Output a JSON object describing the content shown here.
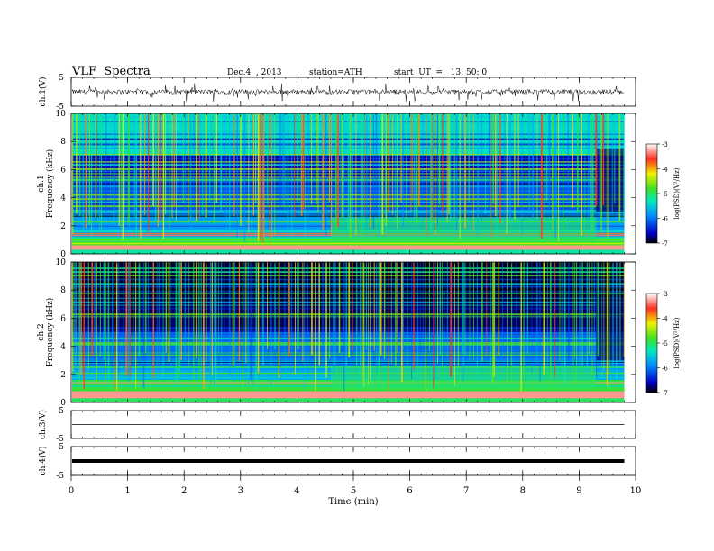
{
  "header": {
    "title": "VLF  Spectra",
    "date": "Dec.4  , 2013",
    "station": "station=ATH",
    "start_ut": "start  UT  =   13: 50: 0"
  },
  "chart_data": [
    {
      "type": "line",
      "panel": "ch1-waveform",
      "ylabel": "ch.1(V)",
      "yticks": [
        "5",
        "-5"
      ],
      "ylim": [
        -5,
        5
      ],
      "xlim": [
        0,
        10
      ],
      "series": [
        {
          "description_values": "noisy baseline near 0 V",
          "mean": 0,
          "spikes_to": [
            -3.5,
            3
          ]
        }
      ]
    },
    {
      "type": "heatmap",
      "panel": "ch1-spectrogram",
      "ylabel": "ch.1\nFrequency  (kHz)",
      "yticks": [
        "0",
        "2",
        "4",
        "6",
        "8",
        "10"
      ],
      "ylim": [
        0,
        10
      ],
      "xlim": [
        0,
        9.8
      ],
      "colorbar": {
        "label": "log(PSD)(V²/Hz)",
        "ticks": [
          "-3",
          "-4",
          "-5",
          "-6",
          "-7"
        ],
        "range": [
          -7,
          -3
        ]
      },
      "bands": [
        {
          "f": [
            0,
            0.3
          ],
          "logpsd": -5.2
        },
        {
          "f": [
            0.3,
            0.6
          ],
          "logpsd": -3.2
        },
        {
          "f": [
            0.6,
            1.2
          ],
          "logpsd": -4.7
        },
        {
          "f": [
            1.2,
            2.8
          ],
          "logpsd": -5.8
        },
        {
          "f": [
            2.8,
            5.5
          ],
          "logpsd": -6.2
        },
        {
          "f": [
            5.5,
            7.0
          ],
          "logpsd": -6.6
        },
        {
          "f": [
            7.0,
            10
          ],
          "logpsd": -5.4
        }
      ],
      "level_shift_at_min": 4.6,
      "quiet_after_min": 9.3
    },
    {
      "type": "heatmap",
      "panel": "ch2-spectrogram",
      "ylabel": "ch.2\nFrequency  (kHz)",
      "yticks": [
        "0",
        "2",
        "4",
        "6",
        "8",
        "10"
      ],
      "ylim": [
        0,
        10
      ],
      "xlim": [
        0,
        9.8
      ],
      "colorbar": {
        "label": "log(PSD)(V²/Hz)",
        "ticks": [
          "-3",
          "-4",
          "-5",
          "-6",
          "-7"
        ],
        "range": [
          -7,
          -3
        ]
      },
      "bands": [
        {
          "f": [
            0,
            0.4
          ],
          "logpsd": -5.0
        },
        {
          "f": [
            0.4,
            0.8
          ],
          "logpsd": -3.3
        },
        {
          "f": [
            0.8,
            1.6
          ],
          "logpsd": -4.9
        },
        {
          "f": [
            1.6,
            3.0
          ],
          "logpsd": -5.7
        },
        {
          "f": [
            3.0,
            5.0
          ],
          "logpsd": -6.1
        },
        {
          "f": [
            5.0,
            7.0
          ],
          "logpsd": -6.8
        },
        {
          "f": [
            7.0,
            10
          ],
          "logpsd": -6.9
        }
      ],
      "level_shift_at_min": 4.6,
      "quiet_after_min": 9.3
    },
    {
      "type": "line",
      "panel": "ch3-waveform",
      "ylabel": "ch.3(V)",
      "yticks": [
        "5",
        "-5"
      ],
      "ylim": [
        -5,
        5
      ],
      "series": [
        {
          "constant": 0
        }
      ]
    },
    {
      "type": "line",
      "panel": "ch4-waveform",
      "ylabel": "ch.4(V)",
      "yticks": [
        "5",
        "-5"
      ],
      "ylim": [
        -5,
        5
      ],
      "series": [
        {
          "constant": 0,
          "thick": true
        }
      ]
    }
  ],
  "xaxis": {
    "label": "Time  (min)",
    "ticks": [
      "0",
      "1",
      "2",
      "3",
      "4",
      "5",
      "6",
      "7",
      "8",
      "9",
      "10"
    ],
    "range": [
      0,
      10
    ]
  }
}
